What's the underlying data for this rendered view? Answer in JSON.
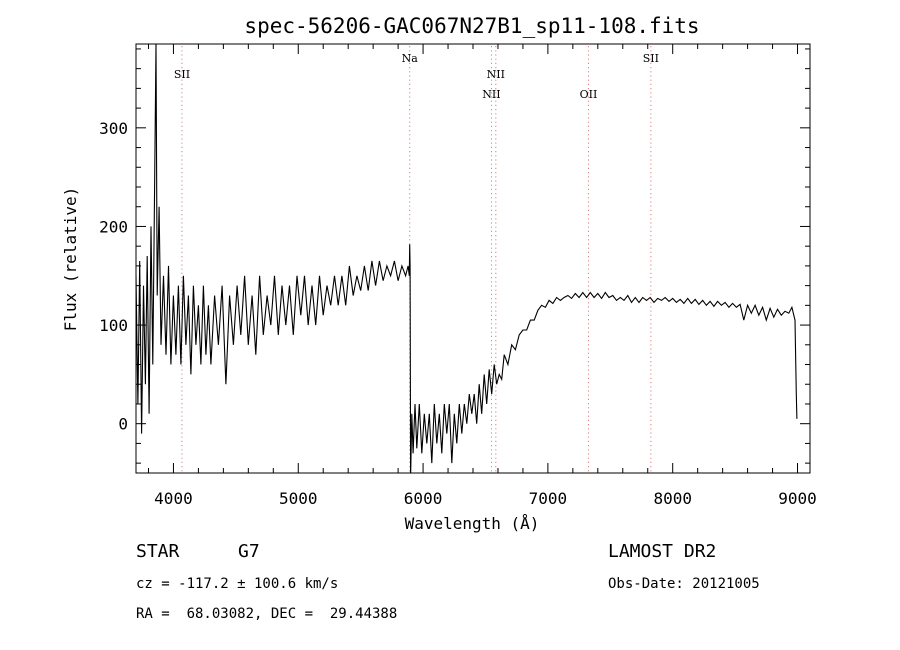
{
  "chart_data": {
    "type": "line",
    "title": "spec-56206-GAC067N27B1_sp11-108.fits",
    "xlabel": "Wavelength (Å)",
    "ylabel": "Flux (relative)",
    "xlim": [
      3700,
      9100
    ],
    "ylim": [
      -50,
      385
    ],
    "xticks": [
      4000,
      5000,
      6000,
      7000,
      8000,
      9000
    ],
    "yticks": [
      0,
      100,
      200,
      300
    ],
    "grid": false,
    "line_color": "#000000",
    "marker_color": "#d98080",
    "spectral_lines": [
      {
        "label": "SII",
        "x": 4068,
        "level": 1
      },
      {
        "label": "Na",
        "x": 5893,
        "level": 0
      },
      {
        "label": "NII",
        "x": 6548,
        "level": 2
      },
      {
        "label": "NII",
        "x": 6583,
        "level": 1
      },
      {
        "label": "OII",
        "x": 7325,
        "level": 2
      },
      {
        "label": "SII",
        "x": 7825,
        "level": 0
      }
    ],
    "series": [
      {
        "values": [
          [
            3700,
            150
          ],
          [
            3715,
            20
          ],
          [
            3730,
            165
          ],
          [
            3745,
            -10
          ],
          [
            3760,
            140
          ],
          [
            3775,
            40
          ],
          [
            3790,
            170
          ],
          [
            3805,
            10
          ],
          [
            3820,
            200
          ],
          [
            3835,
            60
          ],
          [
            3850,
            250
          ],
          [
            3860,
            385
          ],
          [
            3870,
            130
          ],
          [
            3885,
            220
          ],
          [
            3900,
            80
          ],
          [
            3920,
            150
          ],
          [
            3940,
            70
          ],
          [
            3960,
            160
          ],
          [
            3980,
            60
          ],
          [
            4000,
            130
          ],
          [
            4020,
            70
          ],
          [
            4040,
            140
          ],
          [
            4060,
            60
          ],
          [
            4080,
            150
          ],
          [
            4100,
            80
          ],
          [
            4120,
            130
          ],
          [
            4140,
            50
          ],
          [
            4160,
            140
          ],
          [
            4180,
            80
          ],
          [
            4200,
            120
          ],
          [
            4220,
            60
          ],
          [
            4240,
            140
          ],
          [
            4260,
            70
          ],
          [
            4280,
            120
          ],
          [
            4300,
            60
          ],
          [
            4330,
            130
          ],
          [
            4360,
            80
          ],
          [
            4390,
            140
          ],
          [
            4420,
            40
          ],
          [
            4450,
            130
          ],
          [
            4480,
            80
          ],
          [
            4510,
            140
          ],
          [
            4540,
            90
          ],
          [
            4570,
            150
          ],
          [
            4600,
            80
          ],
          [
            4630,
            130
          ],
          [
            4660,
            70
          ],
          [
            4690,
            150
          ],
          [
            4720,
            90
          ],
          [
            4750,
            130
          ],
          [
            4780,
            100
          ],
          [
            4810,
            150
          ],
          [
            4840,
            90
          ],
          [
            4870,
            140
          ],
          [
            4900,
            100
          ],
          [
            4930,
            140
          ],
          [
            4960,
            90
          ],
          [
            4990,
            150
          ],
          [
            5020,
            110
          ],
          [
            5050,
            150
          ],
          [
            5080,
            100
          ],
          [
            5110,
            140
          ],
          [
            5140,
            100
          ],
          [
            5170,
            150
          ],
          [
            5200,
            110
          ],
          [
            5230,
            140
          ],
          [
            5260,
            120
          ],
          [
            5290,
            150
          ],
          [
            5320,
            120
          ],
          [
            5350,
            150
          ],
          [
            5380,
            120
          ],
          [
            5410,
            160
          ],
          [
            5440,
            130
          ],
          [
            5470,
            150
          ],
          [
            5500,
            135
          ],
          [
            5530,
            160
          ],
          [
            5560,
            135
          ],
          [
            5590,
            165
          ],
          [
            5620,
            140
          ],
          [
            5650,
            165
          ],
          [
            5680,
            145
          ],
          [
            5710,
            160
          ],
          [
            5740,
            150
          ],
          [
            5770,
            165
          ],
          [
            5800,
            145
          ],
          [
            5830,
            160
          ],
          [
            5860,
            150
          ],
          [
            5880,
            160
          ],
          [
            5890,
            150
          ],
          [
            5893,
            182
          ],
          [
            5896,
            160
          ],
          [
            5900,
            -55
          ],
          [
            5910,
            10
          ],
          [
            5920,
            -30
          ],
          [
            5935,
            20
          ],
          [
            5950,
            -25
          ],
          [
            5970,
            20
          ],
          [
            5990,
            -30
          ],
          [
            6010,
            10
          ],
          [
            6030,
            -20
          ],
          [
            6050,
            10
          ],
          [
            6070,
            -40
          ],
          [
            6090,
            20
          ],
          [
            6110,
            -20
          ],
          [
            6130,
            10
          ],
          [
            6150,
            -30
          ],
          [
            6170,
            20
          ],
          [
            6190,
            -10
          ],
          [
            6210,
            20
          ],
          [
            6230,
            -40
          ],
          [
            6250,
            10
          ],
          [
            6270,
            -20
          ],
          [
            6290,
            20
          ],
          [
            6310,
            -10
          ],
          [
            6330,
            20
          ],
          [
            6350,
            0
          ],
          [
            6370,
            30
          ],
          [
            6390,
            10
          ],
          [
            6410,
            30
          ],
          [
            6430,
            0
          ],
          [
            6450,
            40
          ],
          [
            6470,
            10
          ],
          [
            6490,
            50
          ],
          [
            6510,
            20
          ],
          [
            6530,
            55
          ],
          [
            6550,
            30
          ],
          [
            6570,
            60
          ],
          [
            6590,
            40
          ],
          [
            6610,
            50
          ],
          [
            6630,
            45
          ],
          [
            6650,
            70
          ],
          [
            6680,
            60
          ],
          [
            6710,
            80
          ],
          [
            6740,
            75
          ],
          [
            6770,
            90
          ],
          [
            6800,
            95
          ],
          [
            6830,
            95
          ],
          [
            6860,
            105
          ],
          [
            6890,
            105
          ],
          [
            6920,
            115
          ],
          [
            6950,
            120
          ],
          [
            6980,
            118
          ],
          [
            7010,
            125
          ],
          [
            7040,
            122
          ],
          [
            7070,
            128
          ],
          [
            7100,
            125
          ],
          [
            7130,
            128
          ],
          [
            7160,
            130
          ],
          [
            7190,
            127
          ],
          [
            7220,
            132
          ],
          [
            7250,
            128
          ],
          [
            7280,
            133
          ],
          [
            7310,
            128
          ],
          [
            7340,
            133
          ],
          [
            7370,
            128
          ],
          [
            7400,
            132
          ],
          [
            7430,
            127
          ],
          [
            7460,
            133
          ],
          [
            7490,
            128
          ],
          [
            7520,
            130
          ],
          [
            7550,
            125
          ],
          [
            7580,
            128
          ],
          [
            7610,
            125
          ],
          [
            7640,
            130
          ],
          [
            7670,
            123
          ],
          [
            7700,
            128
          ],
          [
            7730,
            123
          ],
          [
            7760,
            128
          ],
          [
            7790,
            125
          ],
          [
            7820,
            128
          ],
          [
            7850,
            123
          ],
          [
            7880,
            127
          ],
          [
            7910,
            125
          ],
          [
            7940,
            128
          ],
          [
            7970,
            124
          ],
          [
            8000,
            127
          ],
          [
            8030,
            123
          ],
          [
            8060,
            126
          ],
          [
            8090,
            122
          ],
          [
            8120,
            127
          ],
          [
            8150,
            122
          ],
          [
            8180,
            126
          ],
          [
            8210,
            121
          ],
          [
            8240,
            125
          ],
          [
            8270,
            120
          ],
          [
            8300,
            124
          ],
          [
            8330,
            119
          ],
          [
            8360,
            124
          ],
          [
            8390,
            120
          ],
          [
            8420,
            123
          ],
          [
            8450,
            118
          ],
          [
            8480,
            122
          ],
          [
            8510,
            118
          ],
          [
            8540,
            121
          ],
          [
            8570,
            105
          ],
          [
            8600,
            120
          ],
          [
            8630,
            112
          ],
          [
            8660,
            120
          ],
          [
            8690,
            110
          ],
          [
            8720,
            118
          ],
          [
            8750,
            105
          ],
          [
            8780,
            117
          ],
          [
            8810,
            108
          ],
          [
            8840,
            116
          ],
          [
            8870,
            110
          ],
          [
            8900,
            114
          ],
          [
            8930,
            112
          ],
          [
            8955,
            118
          ],
          [
            8970,
            110
          ],
          [
            8980,
            105
          ],
          [
            8990,
            30
          ],
          [
            8995,
            5
          ]
        ]
      }
    ]
  },
  "info": {
    "object_class": "STAR",
    "subclass": "G7",
    "redshift": "cz = -117.2 ± 100.6 km/s",
    "coords": "RA =  68.03082, DEC =  29.44388",
    "survey": "LAMOST DR2",
    "obs_date": "Obs-Date: 20121005"
  }
}
